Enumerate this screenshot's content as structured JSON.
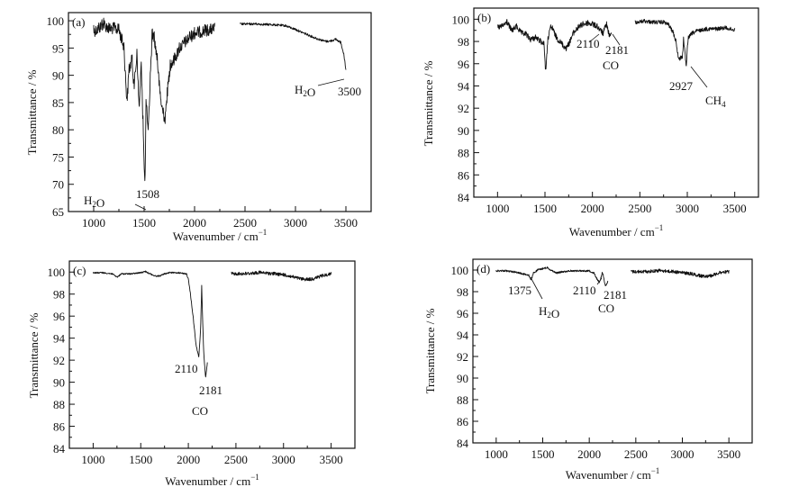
{
  "chart_data": [
    {
      "type": "line",
      "panel_label": "(a)",
      "xlabel": "Wavenumber / cm",
      "xlabel_sup": "−1",
      "ylabel": "Transmittance / %",
      "xlim": [
        750,
        3750
      ],
      "ylim": [
        65,
        101.5
      ],
      "xticks": [
        1000,
        1500,
        2000,
        2500,
        3000,
        3500
      ],
      "yticks": [
        65,
        70,
        75,
        80,
        85,
        90,
        95,
        100
      ],
      "grid": false,
      "series": [
        {
          "name": "spectrum-a-low",
          "noise": 2.2,
          "x": [
            1000,
            1050,
            1080,
            1100,
            1150,
            1200,
            1250,
            1280,
            1300,
            1330,
            1350,
            1380,
            1400,
            1430,
            1450,
            1470,
            1490,
            1508,
            1520,
            1540,
            1560,
            1580,
            1600,
            1630,
            1660,
            1690,
            1710,
            1730,
            1760,
            1800,
            1850,
            1900,
            1950,
            2000,
            2100,
            2200
          ],
          "y": [
            99.2,
            99.6,
            100.2,
            100.5,
            99.6,
            99.7,
            99.4,
            97.5,
            96,
            86,
            92,
            94,
            89,
            95,
            84.5,
            93,
            82,
            70,
            87,
            80,
            90,
            98.8,
            98,
            94,
            87,
            84,
            83,
            88,
            93,
            94,
            96,
            97,
            98,
            98.8,
            99.3,
            99.6
          ]
        },
        {
          "name": "spectrum-a-high",
          "noise": 0.4,
          "x": [
            2450,
            2600,
            2750,
            2900,
            3000,
            3100,
            3200,
            3300,
            3350,
            3400,
            3450,
            3480,
            3500
          ],
          "y": [
            99.6,
            99.6,
            99.5,
            99.3,
            98.6,
            97.8,
            97,
            96.4,
            96.5,
            96.8,
            96.2,
            94,
            91
          ]
        }
      ],
      "annotations": [
        {
          "text": "1508",
          "x": 1508,
          "y": 70
        },
        {
          "text": "H2O",
          "x": 1000,
          "y": 67
        },
        {
          "text": "3500",
          "x": 3500,
          "y": 91
        },
        {
          "text": "H2O",
          "x": 3130,
          "y": 88
        }
      ]
    },
    {
      "type": "line",
      "panel_label": "(b)",
      "xlabel": "Wavenumber / cm",
      "xlabel_sup": "−1",
      "ylabel": "Transmittance / %",
      "xlim": [
        750,
        3750
      ],
      "ylim": [
        84,
        101
      ],
      "xticks": [
        1000,
        1500,
        2000,
        2500,
        3000,
        3500
      ],
      "yticks": [
        84,
        86,
        88,
        90,
        92,
        94,
        96,
        98,
        100
      ],
      "grid": false,
      "series": [
        {
          "name": "spectrum-b-low",
          "noise": 0.5,
          "x": [
            1000,
            1050,
            1100,
            1150,
            1200,
            1250,
            1300,
            1350,
            1400,
            1450,
            1490,
            1508,
            1530,
            1560,
            1580,
            1620,
            1680,
            1720,
            1750,
            1800,
            1850,
            1900,
            1950,
            2000,
            2050,
            2100,
            2110,
            2130,
            2150,
            2170,
            2181,
            2200
          ],
          "y": [
            99.5,
            99.6,
            100,
            99.2,
            99.6,
            99,
            98.9,
            98.4,
            98.6,
            98.3,
            98,
            95.4,
            98.4,
            99.5,
            99.4,
            98.6,
            98,
            97.6,
            98,
            99,
            99.5,
            99.8,
            99.9,
            99.8,
            99.6,
            99.1,
            98.9,
            99.4,
            99.8,
            99,
            98.7,
            98.8
          ]
        },
        {
          "name": "spectrum-b-high",
          "noise": 0.35,
          "x": [
            2450,
            2550,
            2650,
            2750,
            2800,
            2850,
            2880,
            2900,
            2910,
            2930,
            2950,
            2960,
            2990,
            3000,
            3010,
            3050,
            3100,
            3200,
            3300,
            3400,
            3500
          ],
          "y": [
            99.9,
            100,
            99.9,
            99.9,
            99.7,
            99,
            98.2,
            97,
            96.5,
            96.7,
            96.8,
            98.4,
            95.8,
            97.5,
            98.5,
            98.9,
            99.1,
            99.3,
            99.3,
            99.4,
            99.2
          ]
        }
      ],
      "annotations": [
        {
          "text": "2110",
          "x": 2110,
          "y": 98.9
        },
        {
          "text": "2181",
          "x": 2181,
          "y": 98.7
        },
        {
          "text": "CO",
          "x": 2181,
          "y": 96
        },
        {
          "text": "2927",
          "x": 2927,
          "y": 95.8
        },
        {
          "text": "CH4",
          "x": 3160,
          "y": 93
        }
      ]
    },
    {
      "type": "line",
      "panel_label": "(c)",
      "xlabel": "Wavenumber / cm",
      "xlabel_sup": "−1",
      "ylabel": "Transmittance / %",
      "xlim": [
        750,
        3750
      ],
      "ylim": [
        84,
        101
      ],
      "xticks": [
        1000,
        1500,
        2000,
        2500,
        3000,
        3500
      ],
      "yticks": [
        84,
        86,
        88,
        90,
        92,
        94,
        96,
        98,
        100
      ],
      "grid": false,
      "series": [
        {
          "name": "spectrum-c-low",
          "noise": 0.12,
          "x": [
            1000,
            1100,
            1200,
            1250,
            1300,
            1400,
            1500,
            1550,
            1600,
            1650,
            1700,
            1750,
            1800,
            1900,
            1980,
            2000,
            2020,
            2050,
            2080,
            2110,
            2130,
            2140,
            2160,
            2181,
            2200
          ],
          "y": [
            100,
            100,
            99.9,
            99.6,
            99.9,
            99.9,
            100,
            100.1,
            99.9,
            99.7,
            99.7,
            99.9,
            100,
            100,
            99.9,
            99.4,
            98.2,
            96,
            93.5,
            92.3,
            95,
            98.8,
            93,
            90.4,
            91.8
          ]
        },
        {
          "name": "spectrum-c-high",
          "noise": 0.3,
          "x": [
            2450,
            2600,
            2750,
            2900,
            3000,
            3100,
            3200,
            3300,
            3400,
            3500
          ],
          "y": [
            100,
            100,
            100.1,
            100,
            99.9,
            99.7,
            99.5,
            99.5,
            99.8,
            100
          ]
        }
      ],
      "annotations": [
        {
          "text": "2110",
          "x": 2110,
          "y": 92.3
        },
        {
          "text": "2181",
          "x": 2181,
          "y": 90.4
        },
        {
          "text": "CO",
          "x": 2150,
          "y": 87
        }
      ]
    },
    {
      "type": "line",
      "panel_label": "(d)",
      "xlabel": "Wavenumber / cm",
      "xlabel_sup": "−1",
      "ylabel": "Transmittance / %",
      "xlim": [
        750,
        3750
      ],
      "ylim": [
        84,
        101
      ],
      "xticks": [
        1000,
        1500,
        2000,
        2500,
        3000,
        3500
      ],
      "yticks": [
        84,
        86,
        88,
        90,
        92,
        94,
        96,
        98,
        100
      ],
      "grid": false,
      "series": [
        {
          "name": "spectrum-d-low",
          "noise": 0.15,
          "x": [
            1000,
            1100,
            1200,
            1300,
            1350,
            1375,
            1400,
            1450,
            1500,
            1550,
            1600,
            1650,
            1700,
            1800,
            1900,
            2000,
            2050,
            2080,
            2110,
            2140,
            2150,
            2170,
            2181,
            2200
          ],
          "y": [
            100,
            100,
            99.9,
            99.7,
            99.6,
            99.1,
            99.8,
            100.1,
            100.2,
            100.3,
            100,
            99.8,
            99.9,
            100,
            100,
            100,
            99.8,
            99.3,
            98.9,
            99.8,
            99.6,
            98.7,
            98.6,
            99
          ]
        },
        {
          "name": "spectrum-d-high",
          "noise": 0.3,
          "x": [
            2450,
            2600,
            2750,
            2900,
            3000,
            3100,
            3200,
            3300,
            3400,
            3500
          ],
          "y": [
            100,
            100,
            100.1,
            100,
            99.9,
            99.8,
            99.6,
            99.6,
            99.9,
            100
          ]
        }
      ],
      "annotations": [
        {
          "text": "1375",
          "x": 1375,
          "y": 99.1
        },
        {
          "text": "H2O",
          "x": 1500,
          "y": 96.5
        },
        {
          "text": "2110",
          "x": 2110,
          "y": 98.9
        },
        {
          "text": "2181",
          "x": 2181,
          "y": 98.6
        },
        {
          "text": "CO",
          "x": 2181,
          "y": 96.8
        }
      ]
    }
  ]
}
